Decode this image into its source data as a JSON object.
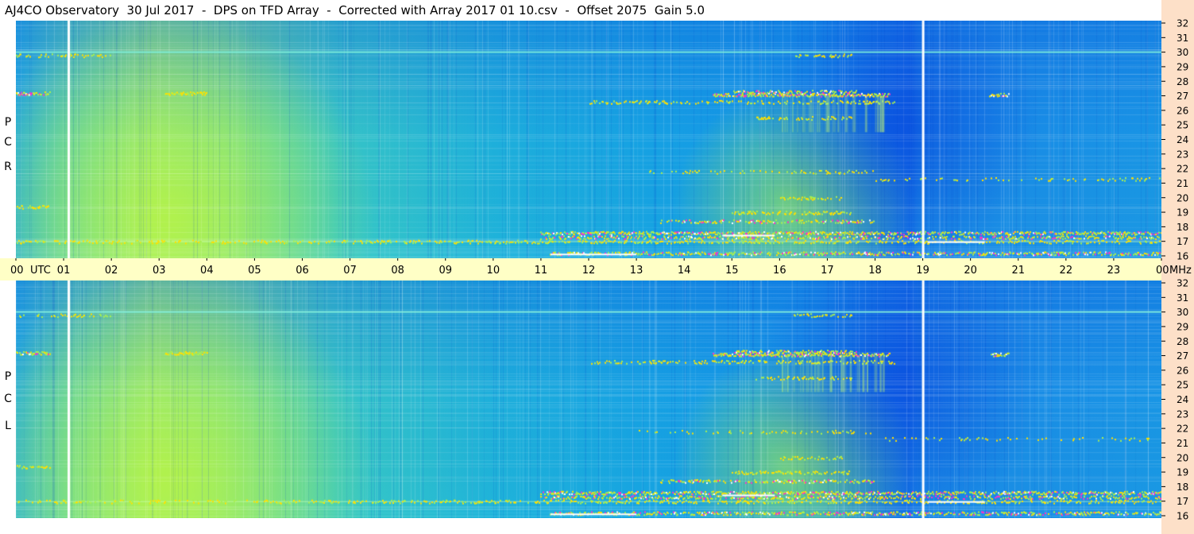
{
  "title": "AJ4CO Observatory  30 Jul 2017  -  DPS on TFD Array  -  Corrected with Array 2017 01 10.csv  -  Offset 2075  Gain 5.0",
  "colors": {
    "background_blue": "#1aa0e6",
    "deep_blue": "#0a5ae0",
    "warm_green": "#9ff06a",
    "time_band": "#ffffc6",
    "right_strip": "#fde0c8",
    "hot_magenta": "#ff30c8",
    "hot_yellow": "#ffe000",
    "white": "#ffffff"
  },
  "chart_data": {
    "type": "heatmap",
    "title": "AJ4CO Observatory  30 Jul 2017  -  DPS on TFD Array  -  Corrected with Array 2017 01 10.csv  -  Offset 2075  Gain 5.0",
    "x_axis": {
      "unit_label": "UTC",
      "tick_labels": [
        "00",
        "01",
        "02",
        "03",
        "04",
        "05",
        "06",
        "07",
        "08",
        "09",
        "10",
        "11",
        "12",
        "13",
        "14",
        "15",
        "16",
        "17",
        "18",
        "19",
        "20",
        "21",
        "22",
        "23",
        "00"
      ],
      "range_hours": [
        0,
        24
      ]
    },
    "y_axis": {
      "unit_label": "MHz",
      "tick_labels": [
        "16",
        "17",
        "18",
        "19",
        "20",
        "21",
        "22",
        "23",
        "24",
        "25",
        "26",
        "27",
        "28",
        "29",
        "30",
        "31",
        "32"
      ],
      "range_mhz": [
        16,
        32
      ]
    },
    "panels": [
      {
        "name": "R C P",
        "polarization_letters": [
          "R",
          "C",
          "P"
        ]
      },
      {
        "name": "L C P",
        "polarization_letters": [
          "L",
          "C",
          "P"
        ]
      }
    ],
    "features": {
      "vertical_white_lines_utc": [
        1.1,
        19.0
      ],
      "horizontal_lines_mhz": [
        30.0,
        17.0
      ],
      "emission_bands_mhz": [
        16.2,
        16.7,
        17.0,
        17.6,
        18.5,
        27.0,
        27.2
      ],
      "hot_region_utc": [
        14.5,
        18.0
      ],
      "warm_region_utc": [
        1.0,
        6.0
      ]
    }
  }
}
